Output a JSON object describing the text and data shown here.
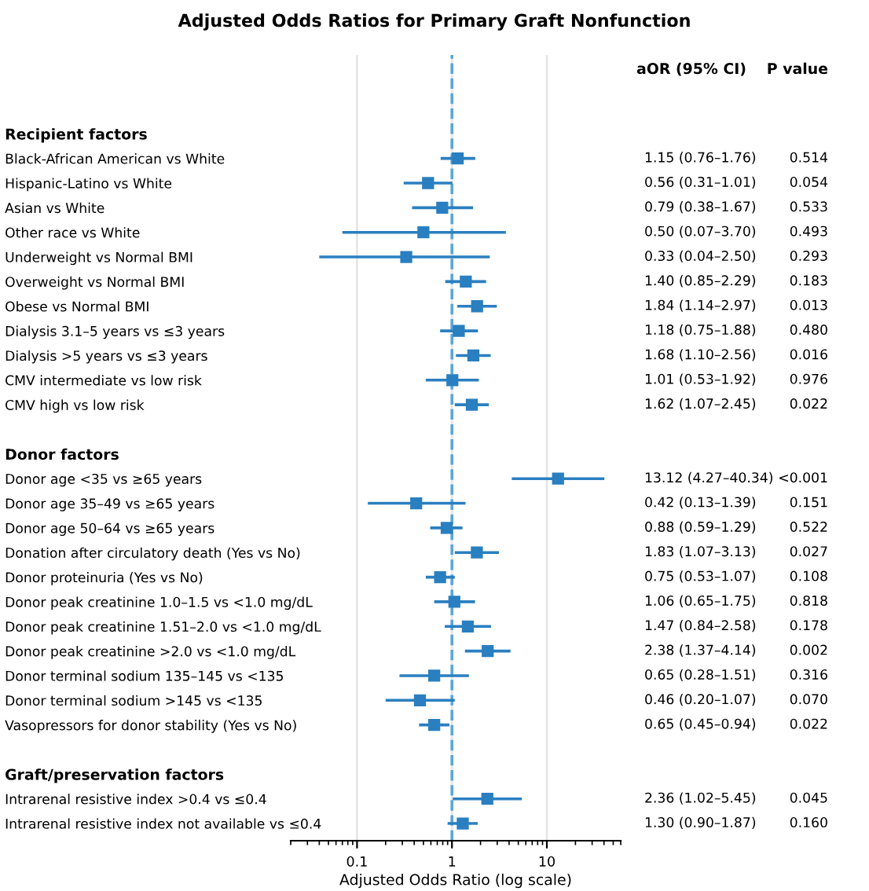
{
  "chart_data": {
    "type": "scatter",
    "orientation": "horizontal",
    "title": "Adjusted Odds Ratios for Primary Graft Nonfunction",
    "xlabel": "Adjusted Odds Ratio (log scale)",
    "categories": [
      null,
      "Recipient factors",
      "Black-African American vs White",
      "Hispanic-Latino vs White",
      "Asian vs White",
      "Other race vs White",
      "Underweight vs Normal BMI",
      "Overweight vs Normal BMI",
      "Obese vs Normal BMI",
      "Dialysis 3.1–5 years vs ≤3 years",
      "Dialysis >5 years vs ≤3 years",
      "CMV intermediate vs low risk",
      "CMV high vs low risk",
      null,
      "Donor factors",
      "Donor age <35 vs ≥65 years",
      "Donor age 35–49 vs ≥65 years",
      "Donor age 50–64 vs ≥65 years",
      "Donation after circulatory death (Yes vs No)",
      "Donor proteinuria (Yes vs No)",
      "Donor peak creatinine 1.0–1.5 vs <1.0 mg/dL",
      "Donor peak creatinine 1.51–2.0 vs <1.0 mg/dL",
      "Donor peak creatinine >2.0 vs <1.0 mg/dL",
      "Donor terminal sodium 135–145 vs <135",
      "Donor terminal sodium >145 vs <135",
      "Vasopressors for donor stability (Yes vs No)",
      null,
      "Graft/preservation factors",
      "Intrarenal resistive index >0.4 vs ≤0.4",
      "Intrarenal resistive index not available vs ≤0.4"
    ],
    "values": [
      null,
      null,
      1.15,
      0.56,
      0.79,
      0.5,
      0.33,
      1.4,
      1.84,
      1.18,
      1.68,
      1.01,
      1.62,
      null,
      null,
      13.12,
      0.42,
      0.88,
      1.83,
      0.75,
      1.06,
      1.47,
      2.38,
      0.65,
      0.46,
      0.65,
      null,
      null,
      2.36,
      1.3
    ],
    "errors": [
      null,
      null,
      [
        0.76,
        1.76
      ],
      [
        0.31,
        1.01
      ],
      [
        0.38,
        1.67
      ],
      [
        0.07,
        3.7
      ],
      [
        0.04,
        2.5
      ],
      [
        0.85,
        2.29
      ],
      [
        1.14,
        2.97
      ],
      [
        0.75,
        1.88
      ],
      [
        1.1,
        2.56
      ],
      [
        0.53,
        1.92
      ],
      [
        1.07,
        2.45
      ],
      null,
      null,
      [
        4.27,
        40.34
      ],
      [
        0.13,
        1.39
      ],
      [
        0.59,
        1.29
      ],
      [
        1.07,
        3.13
      ],
      [
        0.53,
        1.07
      ],
      [
        0.65,
        1.75
      ],
      [
        0.84,
        2.58
      ],
      [
        1.37,
        4.14
      ],
      [
        0.28,
        1.51
      ],
      [
        0.2,
        1.07
      ],
      [
        0.45,
        0.94
      ],
      null,
      null,
      [
        1.02,
        5.45
      ],
      [
        0.9,
        1.87
      ]
    ],
    "color": "#2a7fc0",
    "marker": "square",
    "log": "x",
    "xlim": [
      0.02,
      60
    ],
    "xticks": [
      0.1,
      1,
      10
    ],
    "grid": "x",
    "ref_lines": [
      {
        "axis": "x",
        "value": 1,
        "color": "#5aa6dc",
        "line_style": "dashed"
      }
    ],
    "annotations": [
      "aOR (95% CI)",
      "P value",
      "1.15 (0.76–1.76)",
      "0.514",
      "0.56 (0.31–1.01)",
      "0.054",
      "0.79 (0.38–1.67)",
      "0.533",
      "0.50 (0.07–3.70)",
      "0.493",
      "0.33 (0.04–2.50)",
      "0.293",
      "1.40 (0.85–2.29)",
      "0.183",
      "1.84 (1.14–2.97)",
      "0.013",
      "1.18 (0.75–1.88)",
      "0.480",
      "1.68 (1.10–2.56)",
      "0.016",
      "1.01 (0.53–1.92)",
      "0.976",
      "1.62 (1.07–2.45)",
      "0.022",
      "13.12 (4.27–40.34)",
      "<0.001",
      "0.42 (0.13–1.39)",
      "0.151",
      "0.88 (0.59–1.29)",
      "0.522",
      "1.83 (1.07–3.13)",
      "0.027",
      "0.75 (0.53–1.07)",
      "0.108",
      "1.06 (0.65–1.75)",
      "0.818",
      "1.47 (0.84–2.58)",
      "0.178",
      "2.38 (1.37–4.14)",
      "0.002",
      "0.65 (0.28–1.51)",
      "0.316",
      "0.46 (0.20–1.07)",
      "0.070",
      "0.65 (0.45–0.94)",
      "0.022",
      "2.36 (1.02–5.45)",
      "0.045",
      "1.30 (0.90–1.87)",
      "0.160"
    ]
  }
}
